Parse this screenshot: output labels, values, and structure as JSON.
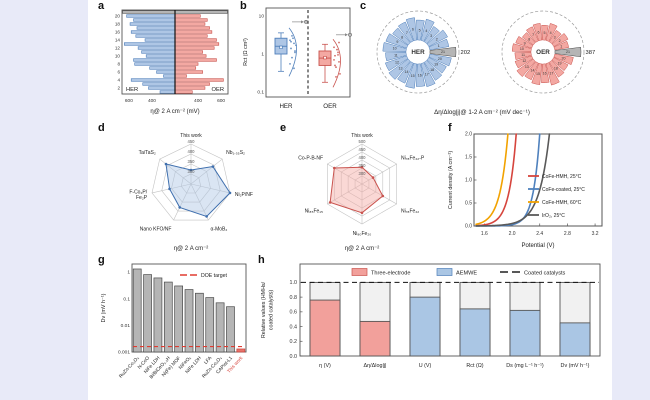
{
  "letters": {
    "a": "a",
    "b": "b",
    "c": "c",
    "d": "d",
    "e": "e",
    "f": "f",
    "g": "g",
    "h": "h"
  },
  "colors": {
    "her_fill": "#aec6e5",
    "her_edge": "#4f7fba",
    "oer_fill": "#f3a8a2",
    "oer_edge": "#c9534e",
    "gray_fill": "#b5b5b5",
    "gray_edge": "#4a4a4a",
    "background": "#e8eaf8",
    "panel_bg": "#ffffff",
    "target_red": "#e03c31"
  },
  "chart_data": [
    {
      "panel": "a",
      "type": "diverging_bar",
      "xlabel": "η@ 2 A cm⁻² (mV)",
      "left_group": "HER",
      "right_group": "OER",
      "x_ticks": [
        600,
        400,
        400,
        600
      ],
      "y_ticks": [
        2,
        4,
        6,
        8,
        10,
        12,
        14,
        16,
        18,
        20
      ],
      "center": 200,
      "max": 660,
      "her_values": [
        330,
        430,
        480,
        580,
        300,
        360,
        420,
        550,
        560,
        450,
        490,
        520,
        640,
        460,
        540,
        580,
        530,
        590,
        560,
        620
      ],
      "oer_values": [
        350,
        460,
        500,
        620,
        300,
        440,
        380,
        400,
        560,
        470,
        440,
        540,
        580,
        560,
        480,
        520,
        500,
        460,
        480,
        420
      ],
      "top_row": {
        "her": 660,
        "oer": 660
      }
    },
    {
      "panel": "b",
      "type": "box",
      "ylabel": "Rct (Ω cm²)",
      "y_ticks": [
        0.1,
        1,
        10
      ],
      "boxes": [
        {
          "label": "HER",
          "fill": "#aec6e5",
          "edge": "#4f7fba",
          "q1": 1.0,
          "q3": 2.6,
          "med": 1.6,
          "mean": 1.5,
          "lo": 0.35,
          "hi": 3.6,
          "outlier": 7,
          "points": [
            2.3,
            1.9,
            1.4,
            1.1,
            0.8,
            1.7,
            2.6,
            0.55,
            0.42,
            2.1,
            1.2,
            3.0
          ]
        },
        {
          "label": "OER",
          "fill": "#f3a8a2",
          "edge": "#c9534e",
          "q1": 0.5,
          "q3": 1.2,
          "med": 0.78,
          "mean": 0.8,
          "lo": 0.18,
          "hi": 1.8,
          "outlier": 3.2,
          "points": [
            1.5,
            1.1,
            0.9,
            0.62,
            0.45,
            0.3,
            1.3,
            0.7,
            0.95,
            0.5,
            2.0,
            0.25
          ]
        }
      ]
    },
    {
      "panel": "c",
      "type": "rose",
      "caption": "Δη/Δlog|j|@ 1-2 A cm⁻² (mV dec⁻¹)",
      "charts": [
        {
          "center_label": "HER",
          "fill": "#aec6e5",
          "edge": "#4f7fba",
          "values": [
            150,
            165,
            140,
            170,
            155,
            175,
            160,
            150,
            170,
            180,
            160,
            175,
            185,
            170,
            190,
            175,
            185,
            165,
            155,
            170,
            202
          ],
          "highlight": {
            "index": 21,
            "value": 202
          }
        },
        {
          "center_label": "OER",
          "fill": "#f3a8a2",
          "edge": "#c9534e",
          "values": [
            210,
            240,
            200,
            260,
            220,
            250,
            230,
            200,
            250,
            280,
            240,
            260,
            300,
            270,
            310,
            280,
            330,
            260,
            240,
            280,
            387
          ],
          "highlight": {
            "index": 21,
            "value": 387
          }
        }
      ]
    },
    {
      "panel": "d",
      "type": "radar",
      "caption": "η@ 2 A cm⁻²",
      "fill": "#aec6e5",
      "edge": "#3f6fae",
      "axes": [
        "This work",
        "Nb₁.₃₅S₂",
        "Ni₂P/NF",
        "α-MoB₂",
        "Nano KFO/NF",
        "F-Co₂P/\nFe₂P",
        "Ta/TaS₂"
      ],
      "tick_values": [
        300,
        350,
        400,
        450
      ],
      "r_min": 250,
      "r_max": 450,
      "values": [
        320,
        390,
        450,
        430,
        380,
        360,
        410
      ]
    },
    {
      "panel": "e",
      "type": "radar",
      "caption": "η@ 2 A cm⁻²",
      "fill": "#f3a8a2",
      "edge": "#c9534e",
      "axes": [
        "This work",
        "Ni₇₈Fe₂₂-P",
        "Ni₇₈Fe₂₂",
        "Ni₈₀Fe₂₀",
        "Ni₈₅Fe₁₅",
        "Co-P-B-NF"
      ],
      "tick_values": [
        300,
        350,
        400,
        450,
        500
      ],
      "r_min": 250,
      "r_max": 500,
      "values": [
        355,
        330,
        400,
        430,
        480,
        450
      ]
    },
    {
      "panel": "f",
      "type": "line",
      "xlabel": "Potential (V)",
      "ylabel": "Current density (A cm⁻²)",
      "x_ticks": [
        1.6,
        2.0,
        2.4,
        2.8,
        3.2
      ],
      "y_ticks": [
        0.0,
        0.5,
        1.0,
        1.5,
        2.0
      ],
      "x_range": [
        1.45,
        3.3
      ],
      "y_range": [
        0,
        2
      ],
      "series": [
        {
          "name": "CoFe-HMH, 25°C",
          "color": "#d6453d",
          "v_at_top": 2.06,
          "slope": 0.105
        },
        {
          "name": "CoFe-coated, 25°C",
          "color": "#4f81bd",
          "v_at_top": 2.4,
          "slope": 0.095
        },
        {
          "name": "CoFe-HMH, 60°C",
          "color": "#f2a200",
          "v_at_top": 1.94,
          "slope": 0.115
        },
        {
          "name": "IrO₂, 25°C",
          "color": "#595959",
          "v_at_top": 2.54,
          "slope": 0.15
        }
      ]
    },
    {
      "panel": "g",
      "type": "logbar",
      "ylabel": "Dv (mV h⁻¹)",
      "y_ticks": [
        1,
        0.1,
        0.01,
        0.001
      ],
      "categories": [
        "RuZn-Co₃O₄",
        "N-CoO",
        "NiFe LDH",
        "Bi/BiCeO₁.₅H",
        "Ni(Fe) MOF",
        "NiFeOₓ",
        "NiFe LDH",
        "LFA",
        "RuZn-Co₃O₄",
        "CAPist-L1",
        "This work"
      ],
      "values": [
        1.3,
        0.8,
        0.6,
        0.42,
        0.3,
        0.22,
        0.16,
        0.11,
        0.07,
        0.05,
        0.0013
      ],
      "highlight_index": 10,
      "highlight_fill": "#e8736b",
      "highlight_edge": "#c9443c",
      "highlight_label_color": "#d6453d",
      "bar_fill": "#b5b5b5",
      "bar_edge": "#4a4a4a",
      "target": {
        "label": "DOE target",
        "value": 0.0016,
        "color": "#e03c31"
      }
    },
    {
      "panel": "h",
      "type": "outline_bar",
      "ylabel_lines": [
        "Relative values (HMHs/",
        "coated catalysts)"
      ],
      "y_ticks": [
        0.0,
        0.2,
        0.4,
        0.6,
        0.8,
        1.0
      ],
      "reference": 1.0,
      "categories": [
        "η (V)",
        "Δη/Δlog|j|",
        "U (V)",
        "Rct (Ω)",
        "Ds (mg L⁻¹ h⁻¹)",
        "Dv (mV h⁻¹)"
      ],
      "values": [
        0.76,
        0.47,
        0.8,
        0.64,
        0.62,
        0.45
      ],
      "series_of": [
        "three",
        "three",
        "aemwe",
        "aemwe",
        "aemwe",
        "aemwe"
      ],
      "legend": [
        {
          "key": "three",
          "label": "Three-electrode",
          "fill": "#f2a09b",
          "edge": "#c9534e"
        },
        {
          "key": "aemwe",
          "label": "AEMWE",
          "fill": "#aac6e4",
          "edge": "#4f7fba"
        },
        {
          "key": "coated",
          "label": "Coated catalysts",
          "style": "dashed"
        }
      ]
    }
  ]
}
